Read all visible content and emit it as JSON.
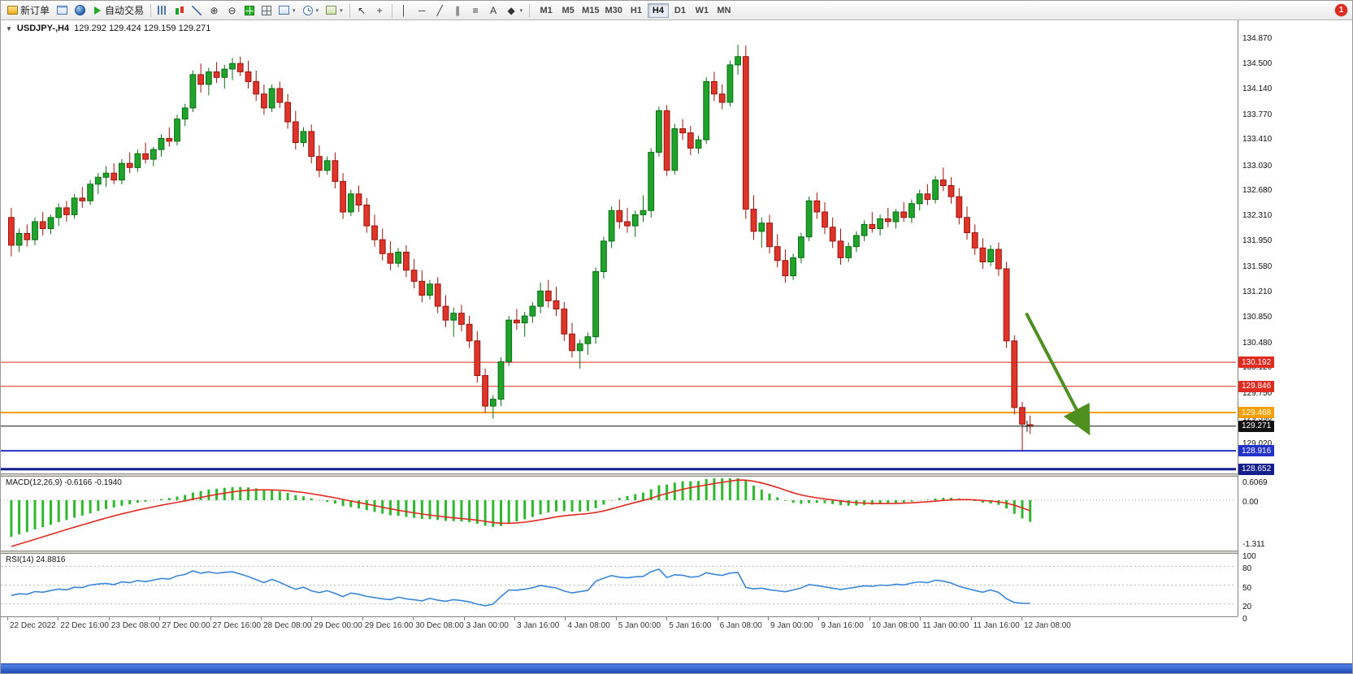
{
  "colors": {
    "bull": "#1fa32a",
    "bull_dark": "#0b6e14",
    "bear": "#df342a",
    "bear_dark": "#9b150d",
    "macd_hist": "#2db82d",
    "macd_signal": "#e02b20",
    "rsi_line": "#3a86d8"
  },
  "toolbar": {
    "badge_count": "1",
    "dropdown_glyph": "▾",
    "timeframes": [
      "M1",
      "M5",
      "M15",
      "M30",
      "H1",
      "H4",
      "D1",
      "W1",
      "MN"
    ],
    "active_timeframe": "H4",
    "items": [
      {
        "name": "new-order-button",
        "icon": "order-icon",
        "label": "新订单"
      },
      {
        "name": "market-watch-button",
        "icon": "chart-window-icon"
      },
      {
        "name": "community-button",
        "icon": "profile-icon"
      },
      {
        "name": "auto-trading-button",
        "icon": "play-icon",
        "label": "自动交易"
      },
      {
        "sep": true
      },
      {
        "name": "bar-chart-button",
        "icon": "bars-icon"
      },
      {
        "name": "candlestick-chart-button",
        "icon": "candles-icon"
      },
      {
        "name": "line-chart-button",
        "icon": "line-icon"
      },
      {
        "name": "zoom-in-button",
        "glyph": "⊕"
      },
      {
        "name": "zoom-out-button",
        "glyph": "⊖"
      },
      {
        "name": "indicators-button",
        "icon": "indicator-grid-icon"
      },
      {
        "name": "tile-windows-button",
        "icon": "tile-icon"
      },
      {
        "name": "new-chart-button",
        "icon": "new-chart-icon",
        "dropdown": true
      },
      {
        "name": "period-button",
        "icon": "clock-icon",
        "dropdown": true
      },
      {
        "name": "template-button",
        "icon": "template-icon",
        "dropdown": true
      },
      {
        "sep": true
      },
      {
        "name": "cursor-button",
        "glyph": "↖"
      },
      {
        "name": "crosshair-button",
        "glyph": "+"
      },
      {
        "sep": true
      },
      {
        "name": "vertical-line-button",
        "glyph": "│"
      },
      {
        "name": "horizontal-line-button",
        "glyph": "─"
      },
      {
        "name": "trendline-button",
        "glyph": "╱"
      },
      {
        "name": "channel-button",
        "glyph": "∥"
      },
      {
        "name": "fibonacci-button",
        "glyph": "≡"
      },
      {
        "name": "text-button",
        "glyph": "A"
      },
      {
        "name": "shapes-button",
        "glyph": "◆",
        "dropdown": true
      },
      {
        "sep": true
      }
    ]
  },
  "chart": {
    "collapse_glyph": "▼",
    "title_symbol": "USDJPY-,H4",
    "title_ohlc": "129.292 129.424 129.159 129.271",
    "price_axis_labels": [
      "134.870",
      "134.500",
      "134.140",
      "133.770",
      "133.410",
      "133.030",
      "132.680",
      "132.310",
      "131.950",
      "131.580",
      "131.210",
      "130.850",
      "130.480",
      "130.120",
      "129.750",
      "129.390",
      "129.020"
    ],
    "levels": [
      {
        "price": 130.192,
        "label": "130.192",
        "color": "#e02b20",
        "width": 1
      },
      {
        "price": 129.846,
        "label": "129.846",
        "color": "#e02b20",
        "width": 1
      },
      {
        "price": 129.468,
        "label": "129.468",
        "color": "#f5a000",
        "width": 2
      },
      {
        "price": 129.271,
        "label": "129.271",
        "color": "#111111",
        "width": 1
      },
      {
        "price": 128.916,
        "label": "128.916",
        "color": "#2233cc",
        "width": 2
      },
      {
        "price": 128.652,
        "label": "128.652",
        "color": "#131f8a",
        "width": 3
      }
    ],
    "arrow": {
      "from_bar": 128.5,
      "from_price": 130.9,
      "to_bar": 136.2,
      "to_price": 129.22,
      "color": "#4e8f1f"
    },
    "crosshair": {
      "bar": 128.6,
      "price": 129.271
    },
    "time_axis_labels": [
      "22 Dec 2022",
      "22 Dec 16:00",
      "23 Dec 08:00",
      "27 Dec 00:00",
      "27 Dec 16:00",
      "28 Dec 08:00",
      "29 Dec 00:00",
      "29 Dec 16:00",
      "30 Dec 08:00",
      "3 Jan 00:00",
      "3 Jan 16:00",
      "4 Jan 08:00",
      "5 Jan 00:00",
      "5 Jan 16:00",
      "6 Jan 08:00",
      "9 Jan 00:00",
      "9 Jan 16:00",
      "10 Jan 08:00",
      "11 Jan 00:00",
      "11 Jan 16:00",
      "12 Jan 08:00"
    ]
  },
  "macd": {
    "header": "MACD(12,26,9) -0.6166 -0.1940",
    "axis_labels": [
      "0.6069",
      "0.00",
      "-1.311"
    ]
  },
  "rsi": {
    "header": "RSI(14) 24.8816",
    "axis_labels": [
      "100",
      "80",
      "50",
      "20",
      "0"
    ],
    "level_lines": [
      80,
      50,
      20
    ]
  },
  "chart_data": {
    "type": "candlestick",
    "symbol": "USDJPY-",
    "timeframe": "H4",
    "current_ohlc": {
      "open": 129.292,
      "high": 129.424,
      "low": 129.159,
      "close": 129.271
    },
    "y_range": [
      128.63,
      135.1
    ],
    "candles": [
      [
        132.28,
        132.42,
        131.72,
        131.88
      ],
      [
        131.88,
        132.12,
        131.78,
        132.05
      ],
      [
        132.05,
        132.18,
        131.86,
        131.96
      ],
      [
        131.96,
        132.28,
        131.88,
        132.22
      ],
      [
        132.22,
        132.36,
        132.02,
        132.12
      ],
      [
        132.12,
        132.32,
        132.04,
        132.28
      ],
      [
        132.28,
        132.48,
        132.16,
        132.42
      ],
      [
        132.42,
        132.52,
        132.22,
        132.32
      ],
      [
        132.32,
        132.62,
        132.26,
        132.56
      ],
      [
        132.56,
        132.72,
        132.42,
        132.52
      ],
      [
        132.52,
        132.82,
        132.46,
        132.76
      ],
      [
        132.76,
        132.92,
        132.62,
        132.86
      ],
      [
        132.86,
        133.02,
        132.72,
        132.92
      ],
      [
        132.92,
        133.06,
        132.76,
        132.82
      ],
      [
        132.82,
        133.12,
        132.76,
        133.06
      ],
      [
        133.06,
        133.22,
        132.92,
        133.0
      ],
      [
        133.0,
        133.26,
        132.94,
        133.2
      ],
      [
        133.2,
        133.36,
        133.06,
        133.12
      ],
      [
        133.12,
        133.3,
        133.02,
        133.26
      ],
      [
        133.26,
        133.48,
        133.16,
        133.42
      ],
      [
        133.42,
        133.58,
        133.3,
        133.38
      ],
      [
        133.38,
        133.76,
        133.32,
        133.7
      ],
      [
        133.7,
        133.92,
        133.6,
        133.86
      ],
      [
        133.86,
        134.4,
        133.8,
        134.34
      ],
      [
        134.34,
        134.5,
        134.08,
        134.2
      ],
      [
        134.2,
        134.44,
        134.04,
        134.38
      ],
      [
        134.38,
        134.52,
        134.22,
        134.3
      ],
      [
        134.3,
        134.48,
        134.14,
        134.42
      ],
      [
        134.42,
        134.58,
        134.26,
        134.5
      ],
      [
        134.5,
        134.6,
        134.32,
        134.38
      ],
      [
        134.38,
        134.54,
        134.14,
        134.24
      ],
      [
        134.24,
        134.4,
        133.96,
        134.06
      ],
      [
        134.06,
        134.2,
        133.76,
        133.86
      ],
      [
        133.86,
        134.2,
        133.8,
        134.14
      ],
      [
        134.14,
        134.24,
        133.86,
        133.94
      ],
      [
        133.94,
        134.06,
        133.56,
        133.66
      ],
      [
        133.66,
        133.82,
        133.26,
        133.36
      ],
      [
        133.36,
        133.58,
        133.3,
        133.52
      ],
      [
        133.52,
        133.62,
        133.06,
        133.16
      ],
      [
        133.16,
        133.32,
        132.86,
        132.96
      ],
      [
        132.96,
        133.16,
        132.9,
        133.1
      ],
      [
        133.1,
        133.22,
        132.7,
        132.8
      ],
      [
        132.8,
        132.92,
        132.26,
        132.36
      ],
      [
        132.36,
        132.68,
        132.3,
        132.62
      ],
      [
        132.62,
        132.74,
        132.36,
        132.46
      ],
      [
        132.46,
        132.56,
        132.06,
        132.16
      ],
      [
        132.16,
        132.32,
        131.86,
        131.96
      ],
      [
        131.96,
        132.12,
        131.66,
        131.76
      ],
      [
        131.76,
        131.94,
        131.52,
        131.62
      ],
      [
        131.62,
        131.84,
        131.56,
        131.78
      ],
      [
        131.78,
        131.88,
        131.42,
        131.52
      ],
      [
        131.52,
        131.68,
        131.26,
        131.36
      ],
      [
        131.36,
        131.52,
        131.06,
        131.16
      ],
      [
        131.16,
        131.38,
        131.1,
        131.32
      ],
      [
        131.32,
        131.42,
        130.9,
        131.0
      ],
      [
        131.0,
        131.16,
        130.7,
        130.8
      ],
      [
        130.8,
        130.98,
        130.56,
        130.9
      ],
      [
        130.9,
        131.02,
        130.64,
        130.74
      ],
      [
        130.74,
        130.86,
        130.4,
        130.5
      ],
      [
        130.5,
        130.64,
        129.9,
        130.0
      ],
      [
        130.0,
        130.1,
        129.46,
        129.56
      ],
      [
        129.56,
        129.72,
        129.38,
        129.66
      ],
      [
        129.66,
        130.26,
        129.56,
        130.2
      ],
      [
        130.2,
        130.86,
        130.14,
        130.8
      ],
      [
        130.8,
        130.96,
        130.66,
        130.76
      ],
      [
        130.76,
        130.92,
        130.56,
        130.86
      ],
      [
        130.86,
        131.06,
        130.76,
        131.0
      ],
      [
        131.0,
        131.34,
        130.9,
        131.22
      ],
      [
        131.22,
        131.38,
        130.98,
        131.08
      ],
      [
        131.08,
        131.28,
        130.86,
        130.96
      ],
      [
        130.96,
        131.06,
        130.5,
        130.6
      ],
      [
        130.6,
        130.76,
        130.26,
        130.36
      ],
      [
        130.36,
        130.52,
        130.1,
        130.46
      ],
      [
        130.46,
        130.62,
        130.3,
        130.56
      ],
      [
        130.56,
        131.56,
        130.46,
        131.5
      ],
      [
        131.5,
        132.0,
        131.4,
        131.94
      ],
      [
        131.94,
        132.44,
        131.84,
        132.38
      ],
      [
        132.38,
        132.54,
        132.12,
        132.22
      ],
      [
        132.22,
        132.42,
        132.06,
        132.16
      ],
      [
        132.16,
        132.38,
        132.0,
        132.32
      ],
      [
        132.32,
        132.6,
        132.22,
        132.38
      ],
      [
        132.38,
        133.28,
        132.28,
        133.22
      ],
      [
        133.22,
        133.88,
        133.16,
        133.82
      ],
      [
        133.82,
        133.9,
        132.88,
        132.96
      ],
      [
        132.96,
        133.63,
        132.9,
        133.56
      ],
      [
        133.56,
        133.7,
        133.4,
        133.5
      ],
      [
        133.5,
        133.6,
        133.18,
        133.28
      ],
      [
        133.28,
        133.46,
        133.2,
        133.4
      ],
      [
        133.4,
        134.3,
        133.34,
        134.24
      ],
      [
        134.24,
        134.38,
        133.96,
        134.06
      ],
      [
        134.06,
        134.2,
        133.84,
        133.94
      ],
      [
        133.94,
        134.54,
        133.88,
        134.48
      ],
      [
        134.48,
        134.77,
        134.34,
        134.6
      ],
      [
        134.6,
        134.76,
        132.26,
        132.4
      ],
      [
        132.4,
        132.6,
        131.96,
        132.08
      ],
      [
        132.08,
        132.28,
        131.84,
        132.2
      ],
      [
        132.2,
        132.32,
        131.76,
        131.86
      ],
      [
        131.86,
        132.04,
        131.56,
        131.66
      ],
      [
        131.66,
        131.82,
        131.34,
        131.44
      ],
      [
        131.44,
        131.76,
        131.38,
        131.7
      ],
      [
        131.7,
        132.06,
        131.62,
        132.0
      ],
      [
        132.0,
        132.58,
        131.94,
        132.52
      ],
      [
        132.52,
        132.64,
        132.26,
        132.36
      ],
      [
        132.36,
        132.5,
        132.04,
        132.14
      ],
      [
        132.14,
        132.28,
        131.84,
        131.94
      ],
      [
        131.94,
        132.12,
        131.6,
        131.7
      ],
      [
        131.7,
        131.92,
        131.64,
        131.86
      ],
      [
        131.86,
        132.08,
        131.78,
        132.02
      ],
      [
        132.02,
        132.24,
        131.94,
        132.18
      ],
      [
        132.18,
        132.36,
        132.06,
        132.12
      ],
      [
        132.12,
        132.32,
        132.02,
        132.26
      ],
      [
        132.26,
        132.42,
        132.14,
        132.22
      ],
      [
        132.22,
        132.4,
        132.12,
        132.36
      ],
      [
        132.36,
        132.5,
        132.22,
        132.28
      ],
      [
        132.28,
        132.54,
        132.2,
        132.48
      ],
      [
        132.48,
        132.68,
        132.38,
        132.62
      ],
      [
        132.62,
        132.76,
        132.46,
        132.54
      ],
      [
        132.54,
        132.88,
        132.48,
        132.82
      ],
      [
        132.82,
        133.0,
        132.66,
        132.74
      ],
      [
        132.74,
        132.86,
        132.48,
        132.58
      ],
      [
        132.58,
        132.7,
        132.18,
        132.28
      ],
      [
        132.28,
        132.44,
        131.96,
        132.06
      ],
      [
        132.06,
        132.18,
        131.74,
        131.84
      ],
      [
        131.84,
        131.98,
        131.54,
        131.64
      ],
      [
        131.64,
        131.88,
        131.58,
        131.82
      ],
      [
        131.82,
        131.92,
        131.44,
        131.54
      ],
      [
        131.54,
        131.64,
        130.4,
        130.5
      ],
      [
        130.5,
        130.58,
        129.44,
        129.54
      ],
      [
        129.54,
        129.62,
        128.92,
        129.3
      ],
      [
        129.292,
        129.424,
        129.159,
        129.271
      ]
    ]
  }
}
